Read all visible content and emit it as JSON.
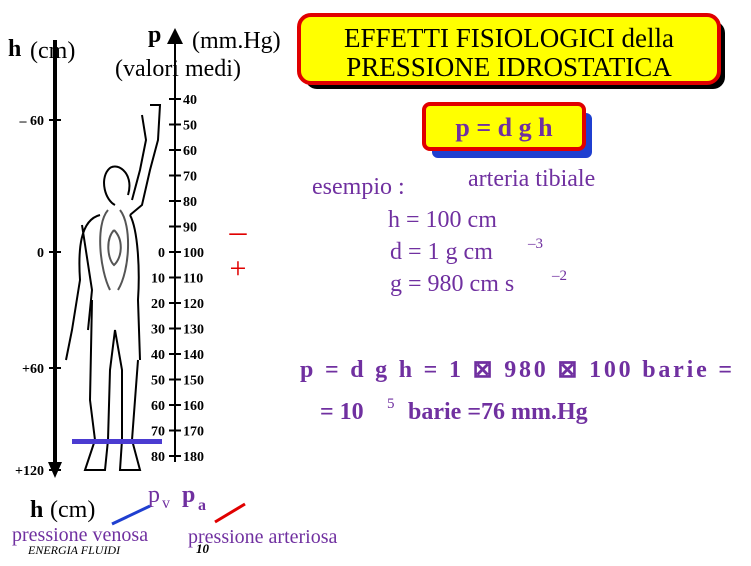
{
  "header": {
    "h_label": "h",
    "h_unit": "(cm)",
    "p_label": "p",
    "p_unit": "(mm.Hg)",
    "p_note": "(valori medi)"
  },
  "title": {
    "line1": "EFFETTI  FISIOLOGICI  della",
    "line2": "PRESSIONE  IDROSTATICA"
  },
  "height_axis": {
    "labels": [
      "– 60",
      "0",
      "+60",
      "+120"
    ],
    "footer_h": "h",
    "footer_unit": "(cm)"
  },
  "arterial_scale": [
    40,
    50,
    60,
    70,
    80,
    90,
    100,
    110,
    120,
    130,
    140,
    150,
    160,
    170,
    180
  ],
  "venous_scale": [
    0,
    10,
    20,
    30,
    40,
    50,
    60,
    70,
    80
  ],
  "signs": {
    "minus": "–",
    "plus": "+"
  },
  "formula_box": "p = d g h",
  "example": {
    "label": "esempio :",
    "site": "arteria tibiale",
    "h": "h = 100 cm",
    "d": "d = 1 g cm",
    "d_exp": "–3",
    "g": "g = 980 cm s",
    "g_exp": "–2"
  },
  "result": {
    "line1": "p = d g h = 1 ⊠  980 ⊠  100 barie =",
    "line2_a": "=  10",
    "line2_exp": "5",
    "line2_b": "barie =76 mm.Hg"
  },
  "pressure_labels": {
    "pv": "p",
    "pv_sub": "v",
    "pa": "p",
    "pa_sub": "a",
    "venous": "pressione venosa",
    "arterial": "pressione arteriosa"
  },
  "footer": {
    "course": "ENERGIA FLUIDI",
    "page": "10"
  }
}
